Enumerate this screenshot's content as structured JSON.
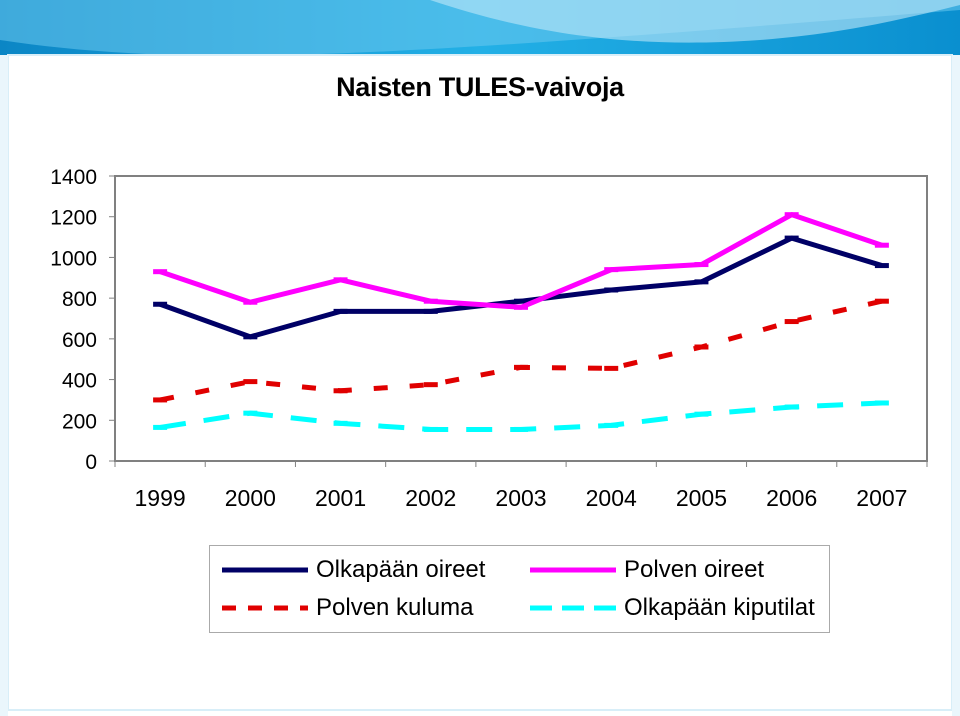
{
  "slide": {
    "colors": {
      "background_top": "#1aa3d9",
      "panel": "#ffffff",
      "stripe": "#e6f4fb"
    }
  },
  "chart_data": {
    "type": "line",
    "title": "Naisten TULES-vaivoja",
    "xlabel": "",
    "ylabel": "",
    "categories": [
      "1999",
      "2000",
      "2001",
      "2002",
      "2003",
      "2004",
      "2005",
      "2006",
      "2007"
    ],
    "ylim": [
      0,
      1400
    ],
    "yticks": [
      "0",
      "200",
      "400",
      "600",
      "800",
      "1000",
      "1200",
      "1400"
    ],
    "grid": false,
    "legend_position": "bottom",
    "series": [
      {
        "name": "Olkapään oireet",
        "values": [
          770,
          610,
          735,
          735,
          785,
          840,
          880,
          1095,
          960
        ],
        "color": "#000066",
        "dash": "solid"
      },
      {
        "name": "Polven oireet",
        "values": [
          930,
          780,
          890,
          785,
          755,
          940,
          965,
          1210,
          1060
        ],
        "color": "#ff00ff",
        "dash": "solid"
      },
      {
        "name": "Polven kuluma",
        "values": [
          300,
          390,
          345,
          375,
          460,
          455,
          560,
          685,
          785
        ],
        "color": "#e00000",
        "dash": "dashed"
      },
      {
        "name": "Olkapään kiputilat",
        "values": [
          165,
          235,
          185,
          155,
          155,
          175,
          230,
          265,
          285
        ],
        "color": "#00ffff",
        "dash": "dashed"
      }
    ]
  }
}
